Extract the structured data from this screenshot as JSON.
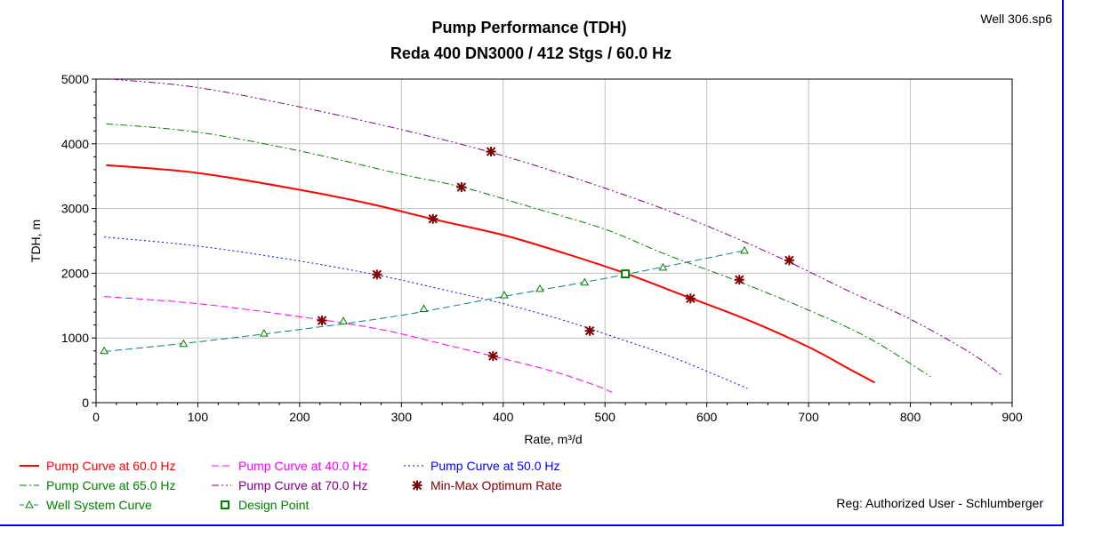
{
  "chart_data": {
    "type": "line",
    "title": "Pump Performance (TDH)",
    "subtitle": "Reda 400 DN3000 / 412 Stgs / 60.0 Hz",
    "file_label": "Well 306.sp6",
    "registration": "Reg: Authorized User - Schlumberger",
    "xlabel": "Rate, m³/d",
    "ylabel": "TDH, m",
    "xlim": [
      0,
      900
    ],
    "ylim": [
      0,
      5000
    ],
    "xticks": [
      "0",
      "100",
      "200",
      "300",
      "400",
      "500",
      "600",
      "700",
      "800",
      "900"
    ],
    "yticks": [
      "0",
      "1000",
      "2000",
      "3000",
      "4000",
      "5000"
    ],
    "grid": true,
    "legend_position": "bottom",
    "series": [
      {
        "name": "Pump Curve at 60.0 Hz",
        "color": "#ff0000",
        "style": "solid",
        "x": [
          10,
          100,
          200,
          270,
          330,
          400,
          460,
          520,
          580,
          640,
          700,
          740,
          765
        ],
        "y": [
          3670,
          3550,
          3290,
          3070,
          2840,
          2590,
          2310,
          2000,
          1640,
          1280,
          860,
          520,
          310
        ]
      },
      {
        "name": "Pump Curve at 40.0 Hz",
        "color": "#ff00ff",
        "style": "dash",
        "x": [
          8,
          100,
          200,
          280,
          350,
          400,
          450,
          490,
          507
        ],
        "y": [
          1640,
          1530,
          1330,
          1130,
          870,
          680,
          480,
          270,
          160
        ]
      },
      {
        "name": "Pump Curve at 50.0 Hz",
        "color": "#0000ff",
        "style": "dot",
        "x": [
          8,
          100,
          200,
          280,
          340,
          400,
          460,
          510,
          560,
          610,
          640
        ],
        "y": [
          2560,
          2420,
          2190,
          1960,
          1750,
          1530,
          1270,
          1010,
          740,
          420,
          220
        ]
      },
      {
        "name": "Pump Curve at 65.0 Hz",
        "color": "#008000",
        "style": "dashdot",
        "x": [
          10,
          100,
          200,
          300,
          360,
          430,
          500,
          560,
          630,
          700,
          760,
          820
        ],
        "y": [
          4310,
          4180,
          3890,
          3530,
          3330,
          3010,
          2680,
          2290,
          1880,
          1430,
          990,
          400
        ]
      },
      {
        "name": "Pump Curve at 70.0 Hz",
        "color": "#800080",
        "style": "dashdotdot",
        "x": [
          15,
          100,
          200,
          300,
          390,
          480,
          560,
          620,
          680,
          740,
          800,
          860,
          890
        ],
        "y": [
          5000,
          4870,
          4570,
          4220,
          3860,
          3420,
          2980,
          2600,
          2180,
          1720,
          1290,
          760,
          420
        ]
      },
      {
        "name": "Well System Curve",
        "color": "#008080",
        "style": "dashtri",
        "x": [
          8,
          100,
          200,
          300,
          400,
          500,
          637
        ],
        "y": [
          790,
          940,
          1130,
          1350,
          1640,
          1920,
          2350
        ],
        "markers_x": [
          8,
          86,
          165,
          243,
          322,
          401,
          436,
          480,
          557,
          637
        ],
        "markers_y": [
          800,
          910,
          1070,
          1260,
          1450,
          1660,
          1760,
          1860,
          2090,
          2350
        ]
      },
      {
        "name": "Min-Max Optimum Rate",
        "color": "#800000",
        "style": "markers",
        "x": [
          222,
          276,
          331,
          359,
          388,
          390,
          485,
          584,
          632,
          681
        ],
        "y": [
          1270,
          1980,
          2840,
          3330,
          3880,
          720,
          1110,
          1610,
          1900,
          2200
        ]
      },
      {
        "name": "Design Point",
        "color": "#008000",
        "style": "square",
        "x": [
          520
        ],
        "y": [
          1990
        ]
      }
    ]
  }
}
